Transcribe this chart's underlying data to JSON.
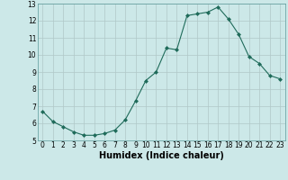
{
  "x": [
    0,
    1,
    2,
    3,
    4,
    5,
    6,
    7,
    8,
    9,
    10,
    11,
    12,
    13,
    14,
    15,
    16,
    17,
    18,
    19,
    20,
    21,
    22,
    23
  ],
  "y": [
    6.7,
    6.1,
    5.8,
    5.5,
    5.3,
    5.3,
    5.4,
    5.6,
    6.2,
    7.3,
    8.5,
    9.0,
    10.4,
    10.3,
    12.3,
    12.4,
    12.5,
    12.8,
    12.1,
    11.2,
    9.9,
    9.5,
    8.8,
    8.6
  ],
  "xlabel": "Humidex (Indice chaleur)",
  "ylim": [
    5,
    13
  ],
  "xlim_min": -0.5,
  "xlim_max": 23.5,
  "yticks": [
    5,
    6,
    7,
    8,
    9,
    10,
    11,
    12,
    13
  ],
  "xticks": [
    0,
    1,
    2,
    3,
    4,
    5,
    6,
    7,
    8,
    9,
    10,
    11,
    12,
    13,
    14,
    15,
    16,
    17,
    18,
    19,
    20,
    21,
    22,
    23
  ],
  "line_color": "#1f6b5a",
  "marker_color": "#1f6b5a",
  "bg_color": "#cce8e8",
  "grid_color": "#b0c8c8",
  "tick_label_fontsize": 5.5,
  "xlabel_fontsize": 7.0
}
